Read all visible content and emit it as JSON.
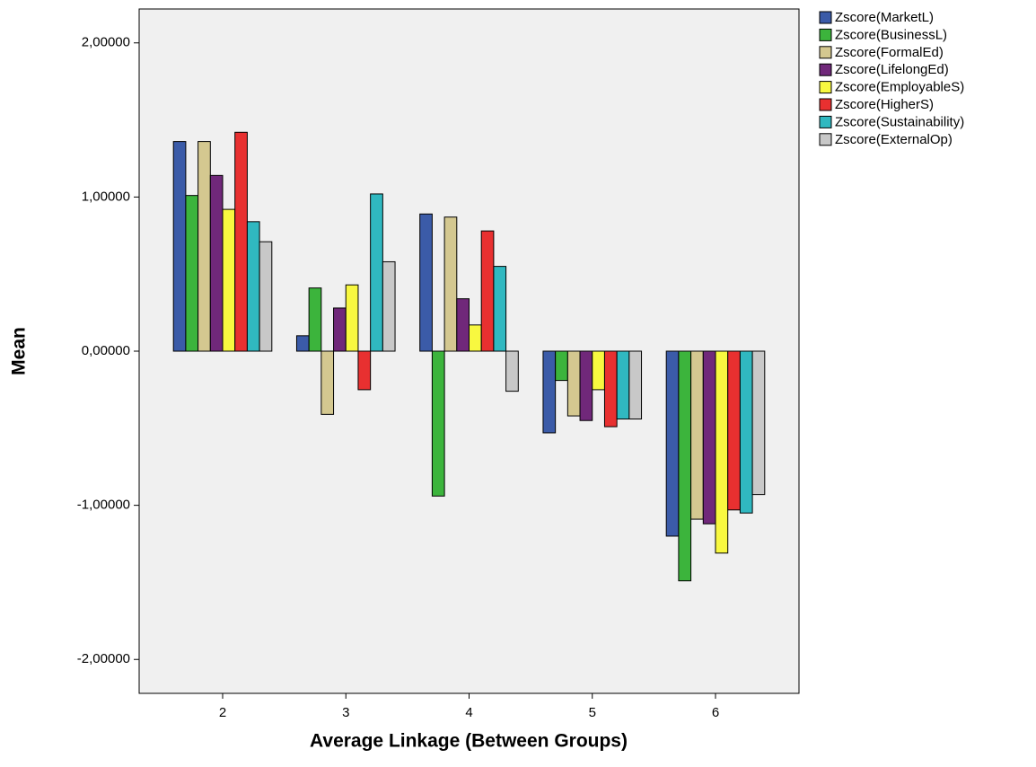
{
  "chart_data": {
    "type": "bar",
    "x_label": "Average Linkage (Between Groups)",
    "y_label": "Mean",
    "categories": [
      "2",
      "3",
      "4",
      "5",
      "6"
    ],
    "series": [
      {
        "name": "Zscore(MarketL)",
        "color": "#3b5ba8",
        "values": [
          1.36,
          0.1,
          0.89,
          -0.53,
          -1.2
        ]
      },
      {
        "name": "Zscore(BusinessL)",
        "color": "#3cb43c",
        "values": [
          1.01,
          0.41,
          -0.94,
          -0.19,
          -1.49
        ]
      },
      {
        "name": "Zscore(FormalEd)",
        "color": "#d4c890",
        "values": [
          1.36,
          -0.41,
          0.87,
          -0.42,
          -1.09
        ]
      },
      {
        "name": "Zscore(LifelongEd)",
        "color": "#70287a",
        "values": [
          1.14,
          0.28,
          0.34,
          -0.45,
          -1.12
        ]
      },
      {
        "name": "Zscore(EmployableS)",
        "color": "#f8f840",
        "values": [
          0.92,
          0.43,
          0.17,
          -0.25,
          -1.31
        ]
      },
      {
        "name": "Zscore(HigherS)",
        "color": "#e83030",
        "values": [
          1.42,
          -0.25,
          0.78,
          -0.49,
          -1.03
        ]
      },
      {
        "name": "Zscore(Sustainability)",
        "color": "#30b8c0",
        "values": [
          0.84,
          1.02,
          0.55,
          -0.44,
          -1.05
        ]
      },
      {
        "name": "Zscore(ExternalOp)",
        "color": "#c8c8c8",
        "values": [
          0.71,
          0.58,
          -0.26,
          -0.44,
          -0.93
        ]
      }
    ],
    "ylim": [
      -2.22,
      2.22
    ],
    "yticks": [
      {
        "value": -2,
        "label": "-2,00000"
      },
      {
        "value": -1,
        "label": "-1,00000"
      },
      {
        "value": 0,
        "label": "0,00000"
      },
      {
        "value": 1,
        "label": "1,00000"
      },
      {
        "value": 2,
        "label": "2,00000"
      }
    ],
    "grid": false,
    "legend": "right"
  }
}
